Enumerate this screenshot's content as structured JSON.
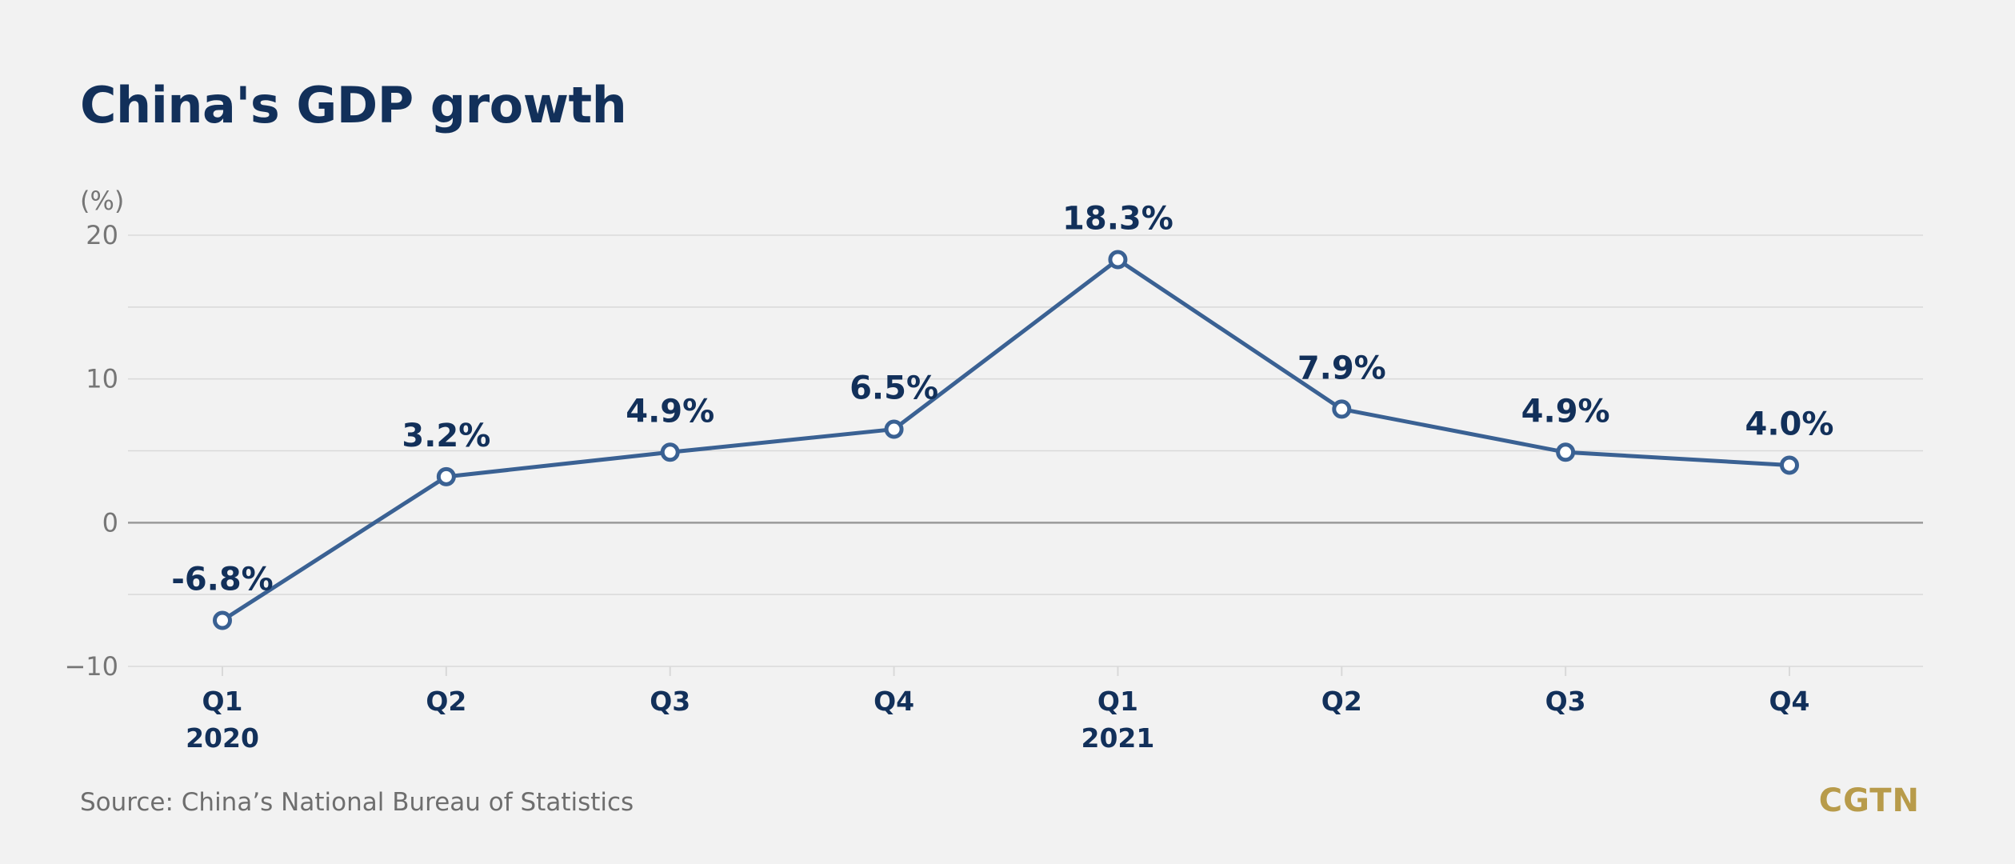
{
  "title": "China's GDP growth",
  "source": "Source: China’s National Bureau of Statistics",
  "logo": "CGTN",
  "colors": {
    "background": "#f2f2f2",
    "title": "#12305a",
    "line": "#3a6193",
    "logo": "#b89b4a",
    "grid": "#d9d9d9",
    "zero_line": "#9a9a9a"
  },
  "chart_data": {
    "type": "line",
    "title": "China's GDP growth",
    "ylabel": "(%)",
    "xlabel": "",
    "ylim": [
      -10,
      20
    ],
    "yticks": [
      -10,
      0,
      10,
      20
    ],
    "grid": true,
    "categories": [
      "Q1",
      "Q2",
      "Q3",
      "Q4",
      "Q1",
      "Q2",
      "Q3",
      "Q4"
    ],
    "year_labels": [
      "2020",
      "",
      "",
      "",
      "2021",
      "",
      "",
      ""
    ],
    "series": [
      {
        "values": [
          -6.8,
          3.2,
          4.9,
          6.5,
          18.3,
          7.9,
          4.9,
          4.0
        ],
        "data_labels": [
          "-6.8%",
          "3.2%",
          "4.9%",
          "6.5%",
          "18.3%",
          "7.9%",
          "4.9%",
          "4.0%"
        ]
      }
    ]
  }
}
